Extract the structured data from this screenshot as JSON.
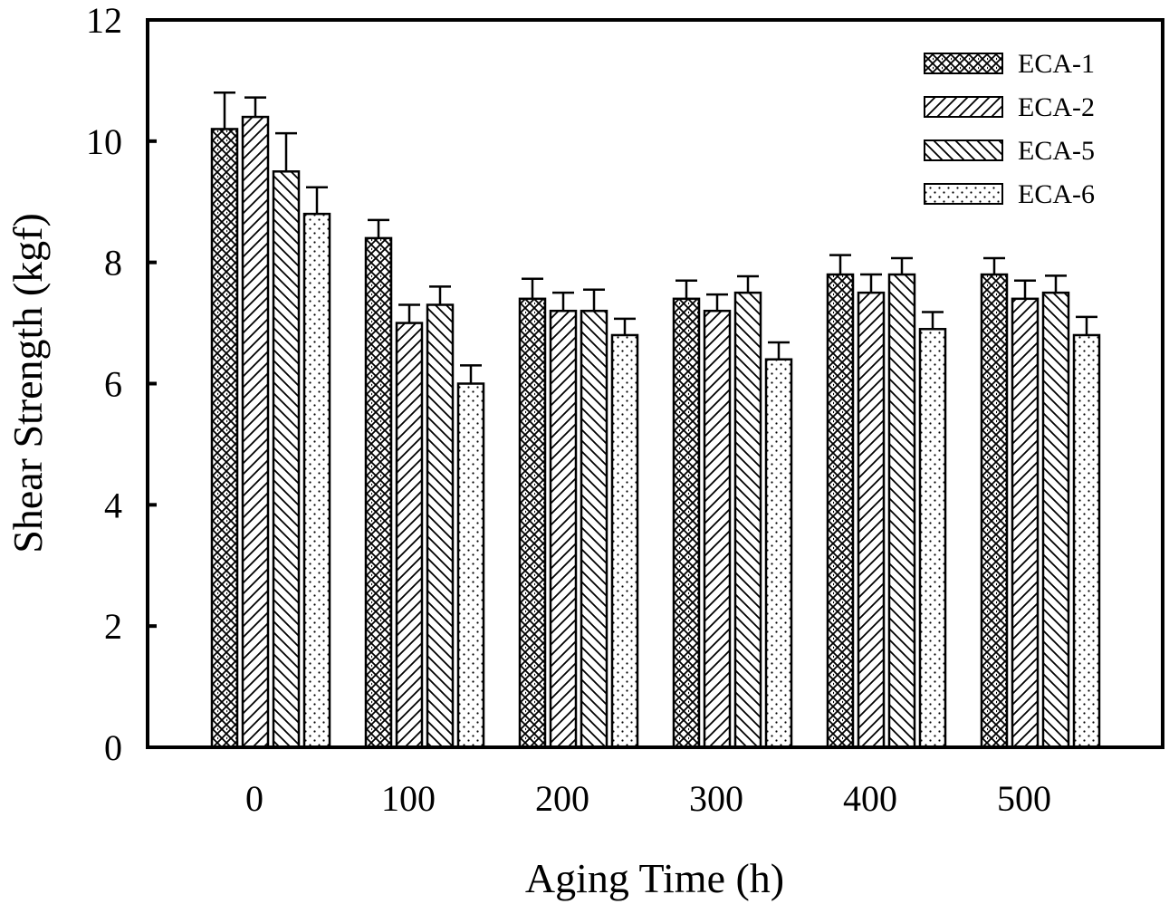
{
  "chart_data": {
    "type": "bar",
    "title": "",
    "xlabel": "Aging Time (h)",
    "ylabel": "Shear Strength (kgf)",
    "ylim": [
      0,
      12
    ],
    "yticks": [
      0,
      2,
      4,
      6,
      8,
      10,
      12
    ],
    "ytick_labels": [
      "0",
      "2",
      "4",
      "6",
      "8",
      "10",
      "12"
    ],
    "categories": [
      "0",
      "100",
      "200",
      "300",
      "400",
      "500"
    ],
    "grid": false,
    "legend_position": "top-right",
    "error_bars": "upper only",
    "series": [
      {
        "name": "ECA-1",
        "pattern": "crosshatch",
        "values": [
          10.2,
          8.4,
          7.4,
          7.4,
          7.8,
          7.8
        ],
        "errors": [
          0.6,
          0.3,
          0.33,
          0.3,
          0.32,
          0.27
        ]
      },
      {
        "name": "ECA-2",
        "pattern": "forward-diagonal",
        "values": [
          10.4,
          7.0,
          7.2,
          7.2,
          7.5,
          7.4
        ],
        "errors": [
          0.32,
          0.3,
          0.3,
          0.27,
          0.3,
          0.3
        ]
      },
      {
        "name": "ECA-5",
        "pattern": "back-diagonal",
        "values": [
          9.5,
          7.3,
          7.2,
          7.5,
          7.8,
          7.5
        ],
        "errors": [
          0.63,
          0.3,
          0.35,
          0.27,
          0.27,
          0.28
        ]
      },
      {
        "name": "ECA-6",
        "pattern": "dots",
        "values": [
          8.8,
          6.0,
          6.8,
          6.4,
          6.9,
          6.8
        ],
        "errors": [
          0.44,
          0.3,
          0.27,
          0.28,
          0.28,
          0.3
        ]
      }
    ]
  },
  "colors": {
    "ink": "#000000",
    "background": "#ffffff"
  }
}
